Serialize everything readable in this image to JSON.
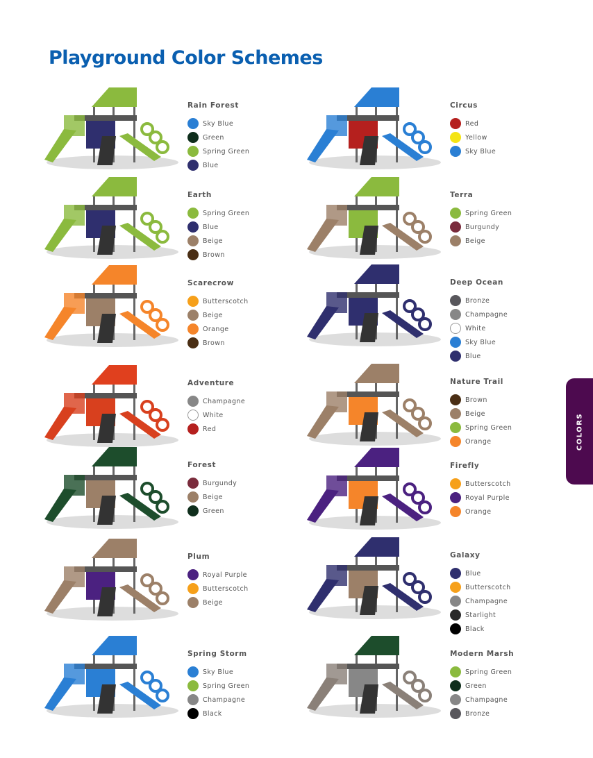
{
  "title": "Playground Color Schemes",
  "side_tab": "COLORS",
  "palette": {
    "Sky Blue": "#2a7fd4",
    "Green": "#0f2e1c",
    "Spring Green": "#8bba3e",
    "Blue": "#2f2f6e",
    "Beige": "#9c8068",
    "Brown": "#4a2e14",
    "Red": "#b5201e",
    "Yellow": "#f4e415",
    "Burgundy": "#7a2b3c",
    "Butterscotch": "#f6a01a",
    "Orange": "#f5852a",
    "Bronze": "#58575c",
    "Champagne": "#878787",
    "White": "#ffffff",
    "Royal Purple": "#4b2180",
    "Starlight": "#2a2a2a",
    "Black": "#000000"
  },
  "schemes": [
    {
      "name": "Rain Forest",
      "colors": [
        "Sky Blue",
        "Green",
        "Spring Green",
        "Blue"
      ],
      "image": {
        "roof": "#8bba3e",
        "slide": "#8bba3e",
        "panel": "#2f2f6e"
      }
    },
    {
      "name": "Circus",
      "colors": [
        "Red",
        "Yellow",
        "Sky Blue"
      ],
      "image": {
        "roof": "#2a7fd4",
        "slide": "#2a7fd4",
        "panel": "#b5201e"
      }
    },
    {
      "name": "Earth",
      "colors": [
        "Spring Green",
        "Blue",
        "Beige",
        "Brown"
      ],
      "image": {
        "roof": "#8bba3e",
        "slide": "#8bba3e",
        "panel": "#2f2f6e"
      }
    },
    {
      "name": "Terra",
      "colors": [
        "Spring Green",
        "Burgundy",
        "Beige"
      ],
      "image": {
        "roof": "#8bba3e",
        "slide": "#9c8068",
        "panel": "#8bba3e"
      }
    },
    {
      "name": "Scarecrow",
      "colors": [
        "Butterscotch",
        "Beige",
        "Orange",
        "Brown"
      ],
      "image": {
        "roof": "#f5852a",
        "slide": "#f5852a",
        "panel": "#9c8068"
      }
    },
    {
      "name": "Deep Ocean",
      "colors": [
        "Bronze",
        "Champagne",
        "White",
        "Sky Blue",
        "Blue"
      ],
      "image": {
        "roof": "#2f2f6e",
        "slide": "#2f2f6e",
        "panel": "#2f2f6e"
      }
    },
    {
      "name": "Adventure",
      "colors": [
        "Champagne",
        "White",
        "Red"
      ],
      "image": {
        "roof": "#e0401e",
        "slide": "#d8401e",
        "panel": "#d8401e"
      }
    },
    {
      "name": "Nature Trail",
      "colors": [
        "Brown",
        "Beige",
        "Spring Green",
        "Orange"
      ],
      "image": {
        "roof": "#9c8068",
        "slide": "#9c8068",
        "panel": "#f5852a"
      }
    },
    {
      "name": "Forest",
      "colors": [
        "Burgundy",
        "Beige",
        "Green"
      ],
      "image": {
        "roof": "#1d4d2c",
        "slide": "#1d4d2c",
        "panel": "#9c8068"
      }
    },
    {
      "name": "Firefly",
      "colors": [
        "Butterscotch",
        "Royal Purple",
        "Orange"
      ],
      "image": {
        "roof": "#4b2180",
        "slide": "#4b2180",
        "panel": "#f5852a"
      }
    },
    {
      "name": "Plum",
      "colors": [
        "Royal Purple",
        "Butterscotch",
        "Beige"
      ],
      "image": {
        "roof": "#9c8068",
        "slide": "#9c8068",
        "panel": "#4b2180"
      }
    },
    {
      "name": "Galaxy",
      "colors": [
        "Blue",
        "Butterscotch",
        "Champagne",
        "Starlight",
        "Black"
      ],
      "image": {
        "roof": "#2f2f6e",
        "slide": "#2f2f6e",
        "panel": "#9c8068"
      }
    },
    {
      "name": "Spring Storm",
      "colors": [
        "Sky Blue",
        "Spring Green",
        "Champagne",
        "Black"
      ],
      "image": {
        "roof": "#2a7fd4",
        "slide": "#2a7fd4",
        "panel": "#2a7fd4"
      }
    },
    {
      "name": "Modern Marsh",
      "colors": [
        "Spring Green",
        "Green",
        "Champagne",
        "Bronze"
      ],
      "image": {
        "roof": "#1d4d2c",
        "slide": "#8a8078",
        "panel": "#878787"
      }
    }
  ]
}
